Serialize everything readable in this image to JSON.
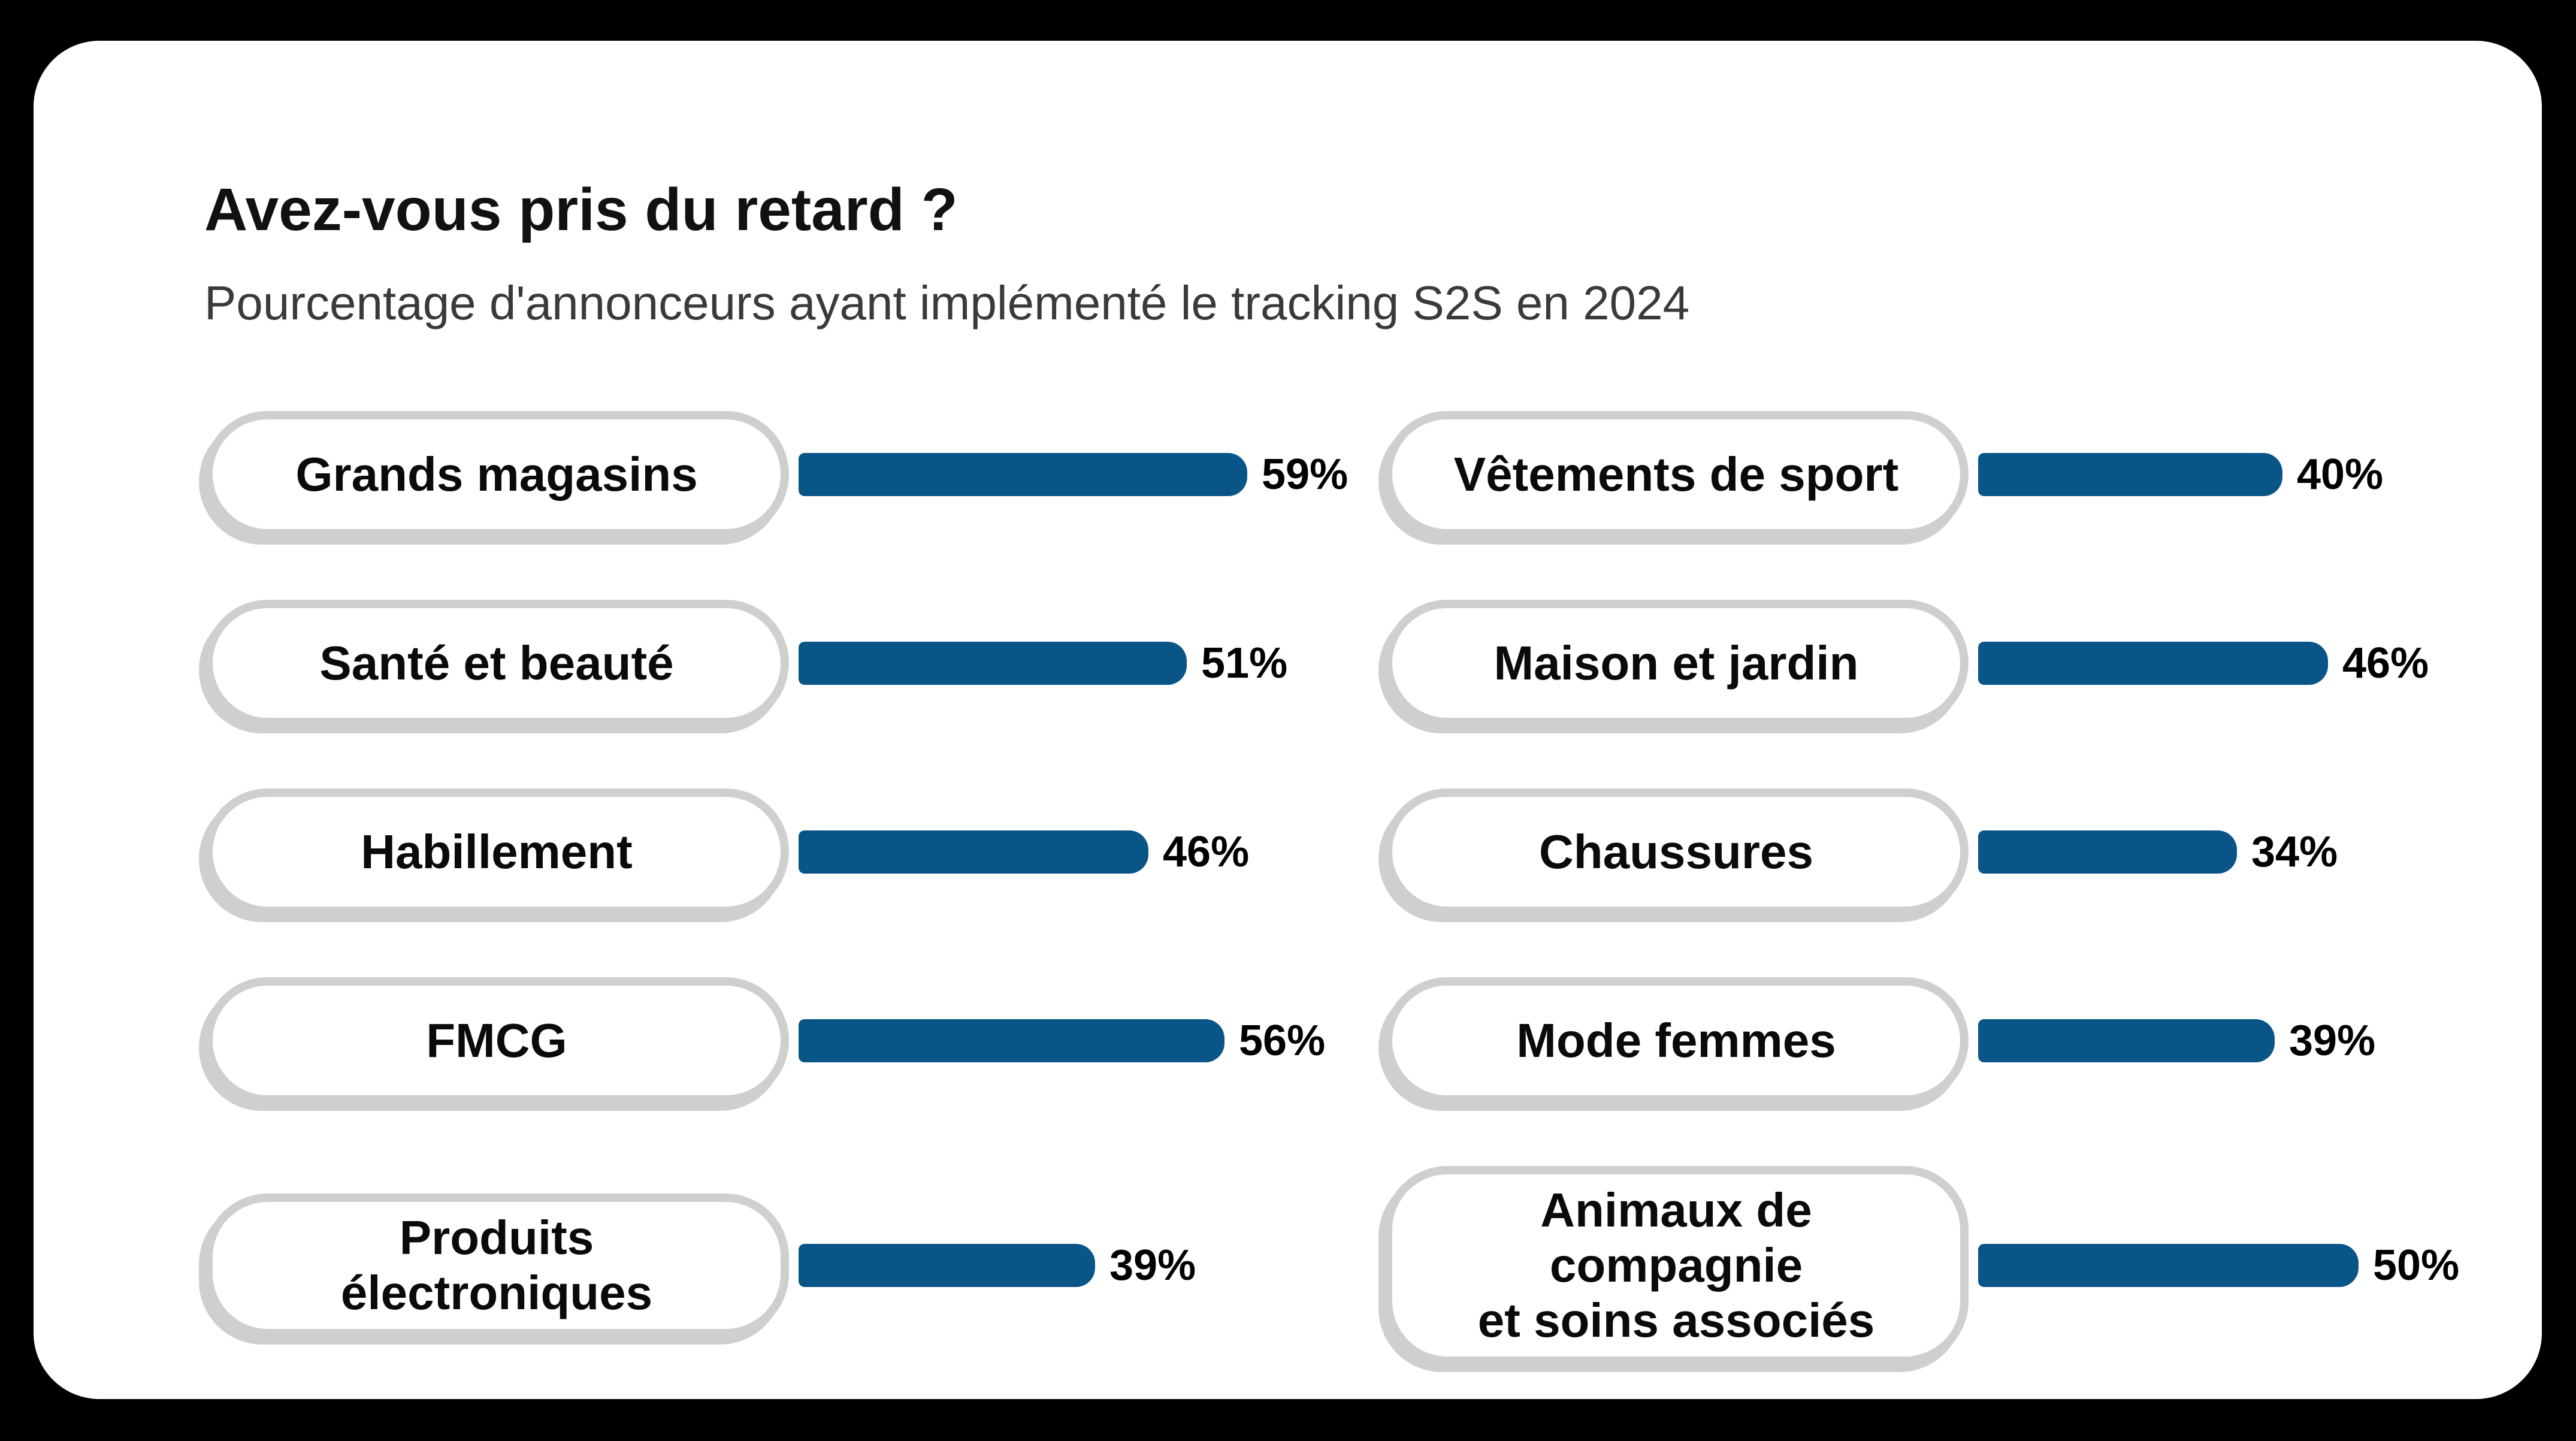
{
  "page": {
    "background_color": "#000000",
    "card_background_color": "#FFFFFF"
  },
  "chart_data": {
    "type": "bar",
    "orientation": "horizontal",
    "layout": "two-column pill labels with bars",
    "columns": 2,
    "title": "Avez-vous pris du retard ?",
    "subtitle": "Pourcentage d'annonceurs ayant implémenté le tracking S2S en 2024",
    "value_unit": "%",
    "bar_color": "#0A5587",
    "pill_border_color": "#CFCFCF",
    "text_color": "#0A0A0A",
    "categories": [
      "Grands magasins",
      "Santé et beauté",
      "Habillement",
      "FMCG",
      "Produits électroniques",
      "Vêtements de sport",
      "Maison et jardin",
      "Chaussures",
      "Mode femmes",
      "Animaux de compagnie et soins associés"
    ],
    "values": [
      59,
      51,
      46,
      56,
      39,
      40,
      46,
      34,
      39,
      50
    ],
    "items": [
      {
        "label": "Grands magasins",
        "value": 59,
        "pct": "59%"
      },
      {
        "label": "Vêtements de sport",
        "value": 40,
        "pct": "40%"
      },
      {
        "label": "Santé et beauté",
        "value": 51,
        "pct": "51%"
      },
      {
        "label": "Maison et jardin",
        "value": 46,
        "pct": "46%"
      },
      {
        "label": "Habillement",
        "value": 46,
        "pct": "46%"
      },
      {
        "label": "Chaussures",
        "value": 34,
        "pct": "34%"
      },
      {
        "label": "FMCG",
        "value": 56,
        "pct": "56%"
      },
      {
        "label": "Mode femmes",
        "value": 39,
        "pct": "39%"
      },
      {
        "label": "Produits\nélectroniques",
        "value": 39,
        "pct": "39%"
      },
      {
        "label": "Animaux de compagnie\net soins associés",
        "value": 50,
        "pct": "50%"
      }
    ]
  }
}
